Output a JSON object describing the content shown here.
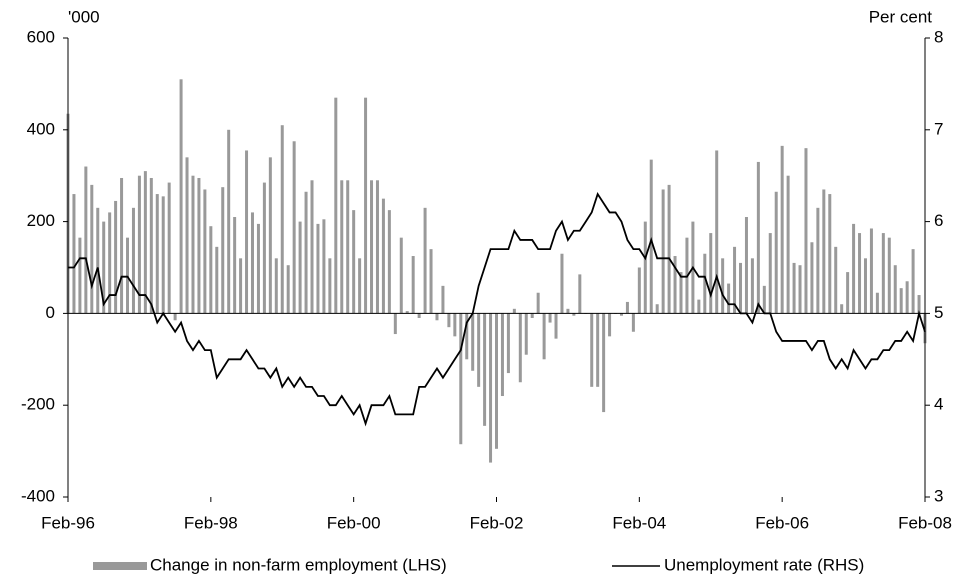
{
  "chart_data": {
    "type": "bar_line",
    "y_unit_label": "'000",
    "y2_unit_label": "Per cent",
    "categories": [
      "Feb-96",
      null,
      null,
      null,
      null,
      null,
      null,
      null,
      null,
      null,
      null,
      null,
      null,
      null,
      null,
      null,
      null,
      null,
      null,
      null,
      null,
      null,
      null,
      null,
      "Feb-98",
      null,
      null,
      null,
      null,
      null,
      null,
      null,
      null,
      null,
      null,
      null,
      null,
      null,
      null,
      null,
      null,
      null,
      null,
      null,
      null,
      null,
      null,
      null,
      "Feb-00",
      null,
      null,
      null,
      null,
      null,
      null,
      null,
      null,
      null,
      null,
      null,
      null,
      null,
      null,
      null,
      null,
      null,
      null,
      null,
      null,
      null,
      null,
      null,
      "Feb-02",
      null,
      null,
      null,
      null,
      null,
      null,
      null,
      null,
      null,
      null,
      null,
      null,
      null,
      null,
      null,
      null,
      null,
      null,
      null,
      null,
      null,
      null,
      null,
      "Feb-04",
      null,
      null,
      null,
      null,
      null,
      null,
      null,
      null,
      null,
      null,
      null,
      null,
      null,
      null,
      null,
      null,
      null,
      null,
      null,
      null,
      null,
      null,
      null,
      "Feb-06",
      null,
      null,
      null,
      null,
      null,
      null,
      null,
      null,
      null,
      null,
      null,
      null,
      null,
      null,
      null,
      null,
      null,
      null,
      null,
      null,
      null,
      null,
      null,
      "Feb-08"
    ],
    "series": [
      {
        "name": "Change in non-farm employment (LHS)",
        "color": "#999999",
        "kind": "bar",
        "values": [
          435,
          260,
          165,
          320,
          280,
          230,
          200,
          220,
          245,
          295,
          165,
          230,
          300,
          310,
          295,
          260,
          255,
          285,
          -15,
          510,
          340,
          300,
          295,
          270,
          190,
          145,
          275,
          400,
          210,
          120,
          355,
          220,
          195,
          285,
          340,
          120,
          410,
          105,
          375,
          200,
          265,
          290,
          195,
          205,
          120,
          470,
          290,
          290,
          225,
          120,
          470,
          290,
          290,
          250,
          225,
          -45,
          165,
          5,
          125,
          -10,
          230,
          140,
          -15,
          60,
          -30,
          -50,
          -285,
          -100,
          -125,
          -160,
          -245,
          -325,
          -295,
          -180,
          -130,
          10,
          -150,
          -90,
          -10,
          45,
          -100,
          -20,
          -55,
          130,
          10,
          -5,
          85,
          0,
          -160,
          -160,
          -215,
          -50,
          0,
          -5,
          25,
          -40,
          100,
          200,
          335,
          20,
          270,
          280,
          125,
          90,
          165,
          200,
          30,
          130,
          175,
          355,
          120,
          65,
          145,
          110,
          210,
          120,
          330,
          60,
          175,
          265,
          365,
          300,
          110,
          105,
          360,
          155,
          230,
          270,
          260,
          145,
          20,
          90,
          195,
          175,
          120,
          185,
          45,
          175,
          165,
          105,
          55,
          70,
          140,
          40,
          -65
        ]
      },
      {
        "name": "Unemployment rate (RHS)",
        "color": "#000000",
        "kind": "line",
        "axis": "y2",
        "values": [
          5.5,
          5.5,
          5.6,
          5.6,
          5.3,
          5.5,
          5.1,
          5.2,
          5.2,
          5.4,
          5.4,
          5.3,
          5.2,
          5.2,
          5.1,
          4.9,
          5.0,
          4.9,
          4.8,
          4.9,
          4.7,
          4.6,
          4.7,
          4.6,
          4.6,
          4.3,
          4.4,
          4.5,
          4.5,
          4.5,
          4.6,
          4.5,
          4.4,
          4.4,
          4.3,
          4.4,
          4.2,
          4.3,
          4.2,
          4.3,
          4.2,
          4.2,
          4.1,
          4.1,
          4.0,
          4.0,
          4.1,
          4.0,
          3.9,
          4.0,
          3.8,
          4.0,
          4.0,
          4.0,
          4.1,
          3.9,
          3.9,
          3.9,
          3.9,
          4.2,
          4.2,
          4.3,
          4.4,
          4.3,
          4.4,
          4.5,
          4.6,
          4.9,
          5.0,
          5.3,
          5.5,
          5.7,
          5.7,
          5.7,
          5.7,
          5.9,
          5.8,
          5.8,
          5.8,
          5.7,
          5.7,
          5.7,
          5.9,
          6.0,
          5.8,
          5.9,
          5.9,
          6.0,
          6.1,
          6.3,
          6.2,
          6.1,
          6.1,
          6.0,
          5.8,
          5.7,
          5.7,
          5.6,
          5.8,
          5.6,
          5.6,
          5.6,
          5.5,
          5.4,
          5.4,
          5.5,
          5.4,
          5.4,
          5.2,
          5.4,
          5.2,
          5.1,
          5.1,
          5.0,
          5.0,
          4.9,
          5.1,
          5.0,
          5.0,
          4.8,
          4.7,
          4.7,
          4.7,
          4.7,
          4.7,
          4.6,
          4.7,
          4.7,
          4.5,
          4.4,
          4.5,
          4.4,
          4.6,
          4.5,
          4.4,
          4.5,
          4.5,
          4.6,
          4.6,
          4.7,
          4.7,
          4.8,
          4.7,
          5.0,
          4.8
        ]
      }
    ],
    "ylim": [
      -400,
      600
    ],
    "yticks": [
      -400,
      -200,
      0,
      200,
      400,
      600
    ],
    "y2lim": [
      3,
      8
    ],
    "y2ticks": [
      3,
      4,
      5,
      6,
      7,
      8
    ]
  }
}
